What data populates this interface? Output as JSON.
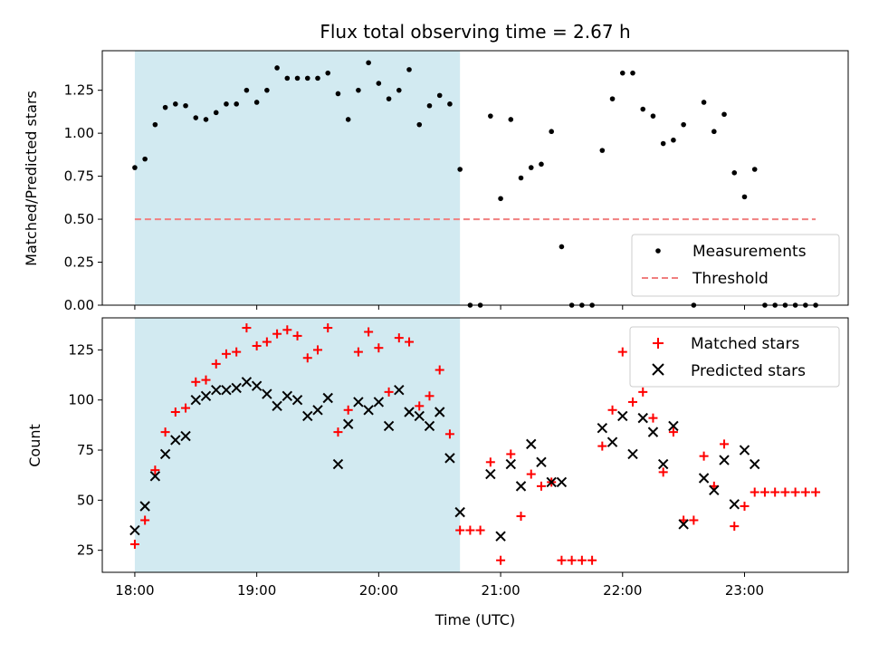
{
  "chart_data": [
    {
      "type": "scatter",
      "title": "Flux total observing time = 2.67 h",
      "xlabel": "",
      "ylabel": "Matched/Predicted stars",
      "x_unit": "time (UTC)",
      "xlim": [
        "17:44",
        "23:51"
      ],
      "ylim": [
        0,
        1.48
      ],
      "yticks": [
        0,
        0.25,
        0.5,
        0.75,
        1.0,
        1.25
      ],
      "ytick_labels": [
        "0.00",
        "0.25",
        "0.50",
        "0.75",
        "1.00",
        "1.25"
      ],
      "shaded_region": {
        "x_start": "18:00",
        "x_end": "20:40",
        "color": "#add8e6"
      },
      "legend_position": "lower right",
      "series": [
        {
          "name": "Measurements",
          "marker": "dot",
          "color": "#000000",
          "points": [
            [
              "18:00",
              0.8
            ],
            [
              "18:05",
              0.85
            ],
            [
              "18:10",
              1.05
            ],
            [
              "18:15",
              1.15
            ],
            [
              "18:20",
              1.17
            ],
            [
              "18:25",
              1.16
            ],
            [
              "18:30",
              1.09
            ],
            [
              "18:35",
              1.08
            ],
            [
              "18:40",
              1.12
            ],
            [
              "18:45",
              1.17
            ],
            [
              "18:50",
              1.17
            ],
            [
              "18:55",
              1.25
            ],
            [
              "19:00",
              1.18
            ],
            [
              "19:05",
              1.25
            ],
            [
              "19:10",
              1.38
            ],
            [
              "19:15",
              1.32
            ],
            [
              "19:20",
              1.32
            ],
            [
              "19:25",
              1.32
            ],
            [
              "19:30",
              1.32
            ],
            [
              "19:35",
              1.35
            ],
            [
              "19:40",
              1.23
            ],
            [
              "19:45",
              1.08
            ],
            [
              "19:50",
              1.25
            ],
            [
              "19:55",
              1.41
            ],
            [
              "20:00",
              1.29
            ],
            [
              "20:05",
              1.2
            ],
            [
              "20:10",
              1.25
            ],
            [
              "20:15",
              1.37
            ],
            [
              "20:20",
              1.05
            ],
            [
              "20:25",
              1.16
            ],
            [
              "20:30",
              1.22
            ],
            [
              "20:35",
              1.17
            ],
            [
              "20:40",
              0.79
            ],
            [
              "20:45",
              0.0
            ],
            [
              "20:50",
              0.0
            ],
            [
              "20:55",
              1.1
            ],
            [
              "21:00",
              0.62
            ],
            [
              "21:05",
              1.08
            ],
            [
              "21:10",
              0.74
            ],
            [
              "21:15",
              0.8
            ],
            [
              "21:20",
              0.82
            ],
            [
              "21:25",
              1.01
            ],
            [
              "21:30",
              0.34
            ],
            [
              "21:35",
              0.0
            ],
            [
              "21:40",
              0.0
            ],
            [
              "21:45",
              0.0
            ],
            [
              "21:50",
              0.9
            ],
            [
              "21:55",
              1.2
            ],
            [
              "22:00",
              1.35
            ],
            [
              "22:05",
              1.35
            ],
            [
              "22:10",
              1.14
            ],
            [
              "22:15",
              1.1
            ],
            [
              "22:20",
              0.94
            ],
            [
              "22:25",
              0.96
            ],
            [
              "22:30",
              1.05
            ],
            [
              "22:35",
              0.0
            ],
            [
              "22:40",
              1.18
            ],
            [
              "22:45",
              1.01
            ],
            [
              "22:50",
              1.11
            ],
            [
              "22:55",
              0.77
            ],
            [
              "23:00",
              0.63
            ],
            [
              "23:05",
              0.79
            ],
            [
              "23:10",
              0.0
            ],
            [
              "23:15",
              0.0
            ],
            [
              "23:20",
              0.0
            ],
            [
              "23:25",
              0.0
            ],
            [
              "23:30",
              0.0
            ],
            [
              "23:35",
              0.0
            ]
          ]
        },
        {
          "name": "Threshold",
          "marker": "dashed-line",
          "color": "#f08080",
          "points": [
            [
              "18:00",
              0.5
            ],
            [
              "23:35",
              0.5
            ]
          ]
        }
      ]
    },
    {
      "type": "scatter",
      "title": "",
      "xlabel": "Time (UTC)",
      "ylabel": "Count",
      "xlim": [
        "17:44",
        "23:51"
      ],
      "ylim": [
        14,
        141
      ],
      "yticks": [
        25,
        50,
        75,
        100,
        125
      ],
      "ytick_labels": [
        "25",
        "50",
        "75",
        "100",
        "125"
      ],
      "xticks": [
        "18:00",
        "19:00",
        "20:00",
        "21:00",
        "22:00",
        "23:00"
      ],
      "xtick_labels": [
        "18:00",
        "19:00",
        "20:00",
        "21:00",
        "22:00",
        "23:00"
      ],
      "shaded_region": {
        "x_start": "18:00",
        "x_end": "20:40",
        "color": "#add8e6"
      },
      "legend_position": "upper right",
      "series": [
        {
          "name": "Matched stars",
          "marker": "plus",
          "color": "#ff0000",
          "points": [
            [
              "18:00",
              28
            ],
            [
              "18:05",
              40
            ],
            [
              "18:10",
              65
            ],
            [
              "18:15",
              84
            ],
            [
              "18:20",
              94
            ],
            [
              "18:25",
              96
            ],
            [
              "18:30",
              109
            ],
            [
              "18:35",
              110
            ],
            [
              "18:40",
              118
            ],
            [
              "18:45",
              123
            ],
            [
              "18:50",
              124
            ],
            [
              "18:55",
              136
            ],
            [
              "19:00",
              127
            ],
            [
              "19:05",
              129
            ],
            [
              "19:10",
              133
            ],
            [
              "19:15",
              135
            ],
            [
              "19:20",
              132
            ],
            [
              "19:25",
              121
            ],
            [
              "19:30",
              125
            ],
            [
              "19:35",
              136
            ],
            [
              "19:40",
              84
            ],
            [
              "19:45",
              95
            ],
            [
              "19:50",
              124
            ],
            [
              "19:55",
              134
            ],
            [
              "20:00",
              126
            ],
            [
              "20:05",
              104
            ],
            [
              "20:10",
              131
            ],
            [
              "20:15",
              129
            ],
            [
              "20:20",
              97
            ],
            [
              "20:25",
              102
            ],
            [
              "20:30",
              115
            ],
            [
              "20:35",
              83
            ],
            [
              "20:40",
              35
            ],
            [
              "20:45",
              35
            ],
            [
              "20:50",
              35
            ],
            [
              "20:55",
              69
            ],
            [
              "21:00",
              20
            ],
            [
              "21:05",
              73
            ],
            [
              "21:10",
              42
            ],
            [
              "21:15",
              63
            ],
            [
              "21:20",
              57
            ],
            [
              "21:25",
              59
            ],
            [
              "21:30",
              20
            ],
            [
              "21:35",
              20
            ],
            [
              "21:40",
              20
            ],
            [
              "21:45",
              20
            ],
            [
              "21:50",
              77
            ],
            [
              "21:55",
              95
            ],
            [
              "22:00",
              124
            ],
            [
              "22:05",
              99
            ],
            [
              "22:10",
              104
            ],
            [
              "22:15",
              91
            ],
            [
              "22:20",
              64
            ],
            [
              "22:25",
              84
            ],
            [
              "22:30",
              40
            ],
            [
              "22:35",
              40
            ],
            [
              "22:40",
              72
            ],
            [
              "22:45",
              57
            ],
            [
              "22:50",
              78
            ],
            [
              "22:55",
              37
            ],
            [
              "23:00",
              47
            ],
            [
              "23:05",
              54
            ],
            [
              "23:10",
              54
            ],
            [
              "23:15",
              54
            ],
            [
              "23:20",
              54
            ],
            [
              "23:25",
              54
            ],
            [
              "23:30",
              54
            ],
            [
              "23:35",
              54
            ]
          ]
        },
        {
          "name": "Predicted stars",
          "marker": "x",
          "color": "#000000",
          "points": [
            [
              "18:00",
              35
            ],
            [
              "18:05",
              47
            ],
            [
              "18:10",
              62
            ],
            [
              "18:15",
              73
            ],
            [
              "18:20",
              80
            ],
            [
              "18:25",
              82
            ],
            [
              "18:30",
              100
            ],
            [
              "18:35",
              102
            ],
            [
              "18:40",
              105
            ],
            [
              "18:45",
              105
            ],
            [
              "18:50",
              106
            ],
            [
              "18:55",
              109
            ],
            [
              "19:00",
              107
            ],
            [
              "19:05",
              103
            ],
            [
              "19:10",
              97
            ],
            [
              "19:15",
              102
            ],
            [
              "19:20",
              100
            ],
            [
              "19:25",
              92
            ],
            [
              "19:30",
              95
            ],
            [
              "19:35",
              101
            ],
            [
              "19:40",
              68
            ],
            [
              "19:45",
              88
            ],
            [
              "19:50",
              99
            ],
            [
              "19:55",
              95
            ],
            [
              "20:00",
              99
            ],
            [
              "20:05",
              87
            ],
            [
              "20:10",
              105
            ],
            [
              "20:15",
              94
            ],
            [
              "20:20",
              92
            ],
            [
              "20:25",
              87
            ],
            [
              "20:30",
              94
            ],
            [
              "20:35",
              71
            ],
            [
              "20:40",
              44
            ],
            [
              "20:55",
              63
            ],
            [
              "21:00",
              32
            ],
            [
              "21:05",
              68
            ],
            [
              "21:10",
              57
            ],
            [
              "21:15",
              78
            ],
            [
              "21:20",
              69
            ],
            [
              "21:25",
              59
            ],
            [
              "21:30",
              59
            ],
            [
              "21:50",
              86
            ],
            [
              "21:55",
              79
            ],
            [
              "22:00",
              92
            ],
            [
              "22:05",
              73
            ],
            [
              "22:10",
              91
            ],
            [
              "22:15",
              84
            ],
            [
              "22:20",
              68
            ],
            [
              "22:25",
              87
            ],
            [
              "22:30",
              38
            ],
            [
              "22:40",
              61
            ],
            [
              "22:45",
              55
            ],
            [
              "22:50",
              70
            ],
            [
              "22:55",
              48
            ],
            [
              "23:00",
              75
            ],
            [
              "23:05",
              68
            ]
          ]
        }
      ]
    }
  ]
}
